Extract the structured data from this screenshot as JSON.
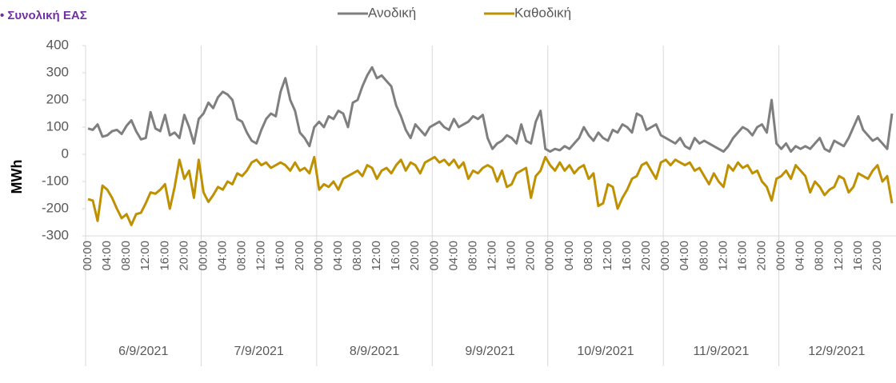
{
  "chart_data": {
    "type": "line",
    "title": "• Συνολική ΕΑΣ",
    "ylabel": "MWh",
    "categories": [
      "00:00",
      null,
      null,
      null,
      "04:00",
      null,
      null,
      null,
      "08:00",
      null,
      null,
      null,
      "12:00",
      null,
      null,
      null,
      "16:00",
      null,
      null,
      null,
      "20:00",
      null,
      null,
      null,
      "00:00",
      null,
      null,
      null,
      "04:00",
      null,
      null,
      null,
      "08:00",
      null,
      null,
      null,
      "12:00",
      null,
      null,
      null,
      "16:00",
      null,
      null,
      null,
      "20:00",
      null,
      null,
      null,
      "00:00",
      null,
      null,
      null,
      "04:00",
      null,
      null,
      null,
      "08:00",
      null,
      null,
      null,
      "12:00",
      null,
      null,
      null,
      "16:00",
      null,
      null,
      null,
      "20:00",
      null,
      null,
      null,
      "00:00",
      null,
      null,
      null,
      "04:00",
      null,
      null,
      null,
      "08:00",
      null,
      null,
      null,
      "12:00",
      null,
      null,
      null,
      "16:00",
      null,
      null,
      null,
      "20:00",
      null,
      null,
      null,
      "00:00",
      null,
      null,
      null,
      "04:00",
      null,
      null,
      null,
      "08:00",
      null,
      null,
      null,
      "12:00",
      null,
      null,
      null,
      "16:00",
      null,
      null,
      null,
      "20:00",
      null,
      null,
      null,
      "00:00",
      null,
      null,
      null,
      "04:00",
      null,
      null,
      null,
      "08:00",
      null,
      null,
      null,
      "12:00",
      null,
      null,
      null,
      "16:00",
      null,
      null,
      null,
      "20:00",
      null,
      null,
      null,
      "00:00",
      null,
      null,
      null,
      "04:00",
      null,
      null,
      null,
      "08:00",
      null,
      null,
      null,
      "12:00",
      null,
      null,
      null,
      "16:00",
      null,
      null,
      null,
      "20:00",
      null,
      null,
      null
    ],
    "days": [
      "6/9/2021",
      "7/9/2021",
      "8/9/2021",
      "9/9/2021",
      "10/9/2021",
      "11/9/2021",
      "12/9/2021"
    ],
    "series": [
      {
        "name": "Ανοδική",
        "color": "#7f7f7f",
        "values": [
          95,
          90,
          110,
          65,
          70,
          85,
          90,
          75,
          105,
          125,
          85,
          55,
          60,
          155,
          95,
          85,
          145,
          70,
          80,
          60,
          145,
          100,
          40,
          130,
          150,
          190,
          170,
          210,
          230,
          220,
          200,
          130,
          120,
          80,
          50,
          40,
          90,
          130,
          150,
          140,
          230,
          280,
          200,
          160,
          80,
          60,
          30,
          100,
          120,
          100,
          140,
          130,
          160,
          150,
          100,
          190,
          200,
          250,
          290,
          320,
          280,
          290,
          270,
          250,
          180,
          140,
          90,
          60,
          110,
          90,
          70,
          100,
          110,
          120,
          100,
          90,
          130,
          100,
          110,
          120,
          140,
          130,
          145,
          60,
          20,
          40,
          50,
          70,
          60,
          40,
          110,
          50,
          40,
          120,
          160,
          20,
          10,
          20,
          15,
          30,
          20,
          40,
          60,
          100,
          70,
          50,
          80,
          60,
          50,
          90,
          80,
          110,
          100,
          80,
          150,
          140,
          90,
          100,
          110,
          70,
          60,
          50,
          40,
          60,
          30,
          20,
          60,
          40,
          50,
          40,
          30,
          20,
          10,
          30,
          60,
          80,
          100,
          90,
          70,
          100,
          110,
          80,
          200,
          40,
          20,
          40,
          10,
          30,
          20,
          30,
          20,
          40,
          60,
          20,
          10,
          50,
          40,
          30,
          60,
          100,
          140,
          90,
          70,
          50,
          60,
          40,
          20,
          150
        ]
      },
      {
        "name": "Καθοδική",
        "color": "#bf9000",
        "values": [
          -165,
          -170,
          -245,
          -115,
          -130,
          -160,
          -200,
          -235,
          -220,
          -260,
          -220,
          -215,
          -180,
          -140,
          -145,
          -130,
          -110,
          -200,
          -120,
          -20,
          -90,
          -60,
          -160,
          -20,
          -140,
          -175,
          -150,
          -120,
          -130,
          -100,
          -110,
          -70,
          -80,
          -60,
          -30,
          -20,
          -40,
          -30,
          -50,
          -40,
          -30,
          -40,
          -60,
          -30,
          -60,
          -50,
          -70,
          -10,
          -130,
          -110,
          -120,
          -100,
          -130,
          -90,
          -80,
          -70,
          -60,
          -80,
          -40,
          -50,
          -90,
          -60,
          -50,
          -70,
          -40,
          -20,
          -60,
          -30,
          -40,
          -70,
          -30,
          -20,
          -10,
          -30,
          -20,
          -40,
          -20,
          -50,
          -30,
          -90,
          -60,
          -70,
          -50,
          -40,
          -50,
          -100,
          -60,
          -120,
          -110,
          -70,
          -60,
          -50,
          -160,
          -80,
          -60,
          -10,
          -40,
          -60,
          -30,
          -60,
          -40,
          -70,
          -50,
          -40,
          -90,
          -70,
          -190,
          -180,
          -110,
          -120,
          -200,
          -160,
          -130,
          -90,
          -80,
          -40,
          -30,
          -60,
          -90,
          -30,
          -20,
          -40,
          -20,
          -30,
          -40,
          -30,
          -60,
          -50,
          -80,
          -110,
          -70,
          -100,
          -120,
          -40,
          -60,
          -30,
          -50,
          -40,
          -70,
          -60,
          -100,
          -120,
          -170,
          -90,
          -80,
          -60,
          -90,
          -40,
          -60,
          -80,
          -140,
          -100,
          -120,
          -150,
          -130,
          -120,
          -80,
          -90,
          -140,
          -120,
          -70,
          -80,
          -90,
          -60,
          -40,
          -100,
          -80,
          -180
        ]
      }
    ],
    "ylim": [
      -300,
      400
    ],
    "yticks": [
      -300,
      -200,
      -100,
      0,
      100,
      200,
      300,
      400
    ],
    "legend": "top"
  }
}
